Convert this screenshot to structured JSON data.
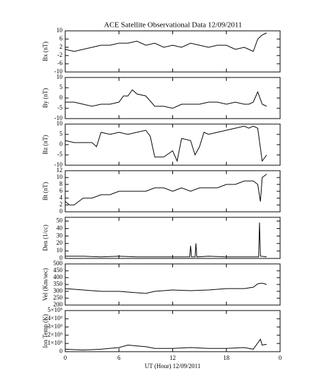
{
  "chart_data": [
    {
      "type": "line",
      "title": "ACE Satellite Observational Data   12/09/2011",
      "ylabel": "Bx (nT)",
      "color": "#000000",
      "xlim": [
        0,
        24
      ],
      "xticks": [
        0,
        6,
        12,
        18,
        {
          "value": 24,
          "label": "0"
        }
      ],
      "ylim": [
        -10,
        10
      ],
      "yticks": [
        -10,
        -6,
        -2,
        2,
        6,
        10
      ],
      "x": [
        0,
        1,
        2,
        3,
        4,
        5,
        6,
        7,
        8,
        9,
        10,
        11,
        12,
        13,
        14,
        15,
        16,
        17,
        18,
        19,
        20,
        20.5,
        21,
        21.5,
        22,
        22.5
      ],
      "values": [
        1,
        0,
        1,
        2,
        3,
        3,
        4,
        4,
        5,
        3,
        4,
        2,
        3,
        2,
        4,
        3,
        2,
        3,
        3,
        1,
        2,
        1,
        0,
        6,
        8,
        9
      ]
    },
    {
      "type": "line",
      "ylabel": "By (nT)",
      "color": "#000000",
      "xlim": [
        0,
        24
      ],
      "xticks": [
        0,
        6,
        12,
        18,
        {
          "value": 24,
          "label": "0"
        }
      ],
      "ylim": [
        -10,
        10
      ],
      "yticks": [
        -10,
        -5,
        0,
        5,
        10
      ],
      "x": [
        0,
        1,
        2,
        3,
        4,
        5,
        6,
        6.5,
        7,
        7.5,
        8,
        9,
        10,
        11,
        12,
        13,
        14,
        15,
        16,
        17,
        18,
        19,
        20,
        20.5,
        21,
        21.5,
        22,
        22.5
      ],
      "values": [
        -2,
        -2,
        -3,
        -4,
        -3,
        -3,
        -2,
        1,
        1,
        4,
        2,
        1,
        -4,
        -4,
        -5,
        -3,
        -3,
        -3,
        -2,
        -2,
        -3,
        -2,
        -3,
        -3,
        -2,
        3,
        -3,
        -4
      ]
    },
    {
      "type": "line",
      "ylabel": "Bz (nT)",
      "color": "#000000",
      "xlim": [
        0,
        24
      ],
      "xticks": [
        0,
        6,
        12,
        18,
        {
          "value": 24,
          "label": "0"
        }
      ],
      "ylim": [
        -10,
        10
      ],
      "yticks": [
        -10,
        -5,
        0,
        5,
        10
      ],
      "x": [
        0,
        1,
        2,
        3,
        3.5,
        4,
        5,
        6,
        7,
        8,
        9,
        9.5,
        10,
        11,
        12,
        12.5,
        13,
        14,
        14.5,
        15,
        15.5,
        16,
        17,
        18,
        19,
        20,
        20.5,
        21,
        21.5,
        22,
        22.5
      ],
      "values": [
        2,
        1,
        1,
        1,
        -1,
        6,
        5,
        6,
        5,
        6,
        7,
        4,
        -6,
        -6,
        -3,
        -8,
        3,
        2,
        -5,
        -1,
        6,
        5,
        6,
        7,
        8,
        9,
        8,
        9,
        8,
        -8,
        -5
      ]
    },
    {
      "type": "line",
      "ylabel": "Bt (nT)",
      "color": "#000000",
      "xlim": [
        0,
        24
      ],
      "xticks": [
        0,
        6,
        12,
        18,
        {
          "value": 24,
          "label": "0"
        }
      ],
      "ylim": [
        0,
        12
      ],
      "yticks": [
        0,
        2,
        4,
        6,
        8,
        10,
        12
      ],
      "x": [
        0,
        0.5,
        1,
        2,
        3,
        4,
        5,
        6,
        7,
        8,
        9,
        10,
        11,
        12,
        13,
        14,
        15,
        16,
        17,
        18,
        19,
        20,
        21,
        21.5,
        21.8,
        22,
        22.5
      ],
      "values": [
        3,
        2,
        2,
        4,
        4,
        5,
        5,
        6,
        6,
        6,
        6,
        7,
        7,
        6,
        7,
        6,
        7,
        7,
        7,
        8,
        8,
        9,
        9,
        8,
        3,
        10,
        11
      ]
    },
    {
      "type": "line",
      "ylabel": "Den (1/cc)",
      "color": "#000000",
      "xlim": [
        0,
        24
      ],
      "xticks": [
        0,
        6,
        12,
        18,
        {
          "value": 24,
          "label": "0"
        }
      ],
      "ylim": [
        0,
        55
      ],
      "yticks": [
        0,
        10,
        20,
        30,
        40,
        50
      ],
      "x": [
        0,
        2,
        4,
        6,
        8,
        10,
        12,
        13.9,
        14,
        14.1,
        14.5,
        14.6,
        14.7,
        16,
        18,
        20,
        21.6,
        21.7,
        21.8,
        22.5
      ],
      "values": [
        3,
        3,
        2,
        3,
        2,
        2,
        2,
        2,
        17,
        2,
        2,
        20,
        2,
        3,
        2,
        2,
        2,
        48,
        3,
        2
      ]
    },
    {
      "type": "line",
      "ylabel": "Vel (Km/sec)",
      "color": "#000000",
      "xlim": [
        0,
        24
      ],
      "xticks": [
        0,
        6,
        12,
        18,
        {
          "value": 24,
          "label": "0"
        }
      ],
      "ylim": [
        200,
        500
      ],
      "yticks": [
        200,
        250,
        300,
        350,
        400,
        450,
        500
      ],
      "x": [
        0,
        2,
        4,
        6,
        8,
        9,
        10,
        12,
        14,
        16,
        18,
        20,
        21,
        21.5,
        22,
        22.5
      ],
      "values": [
        320,
        310,
        300,
        300,
        290,
        285,
        300,
        310,
        305,
        310,
        320,
        320,
        330,
        355,
        360,
        350
      ]
    },
    {
      "type": "line",
      "ylabel": "Ion Temp (K)",
      "xlabel": "UT (Hour)   12/09/2011",
      "color": "#000000",
      "xlim": [
        0,
        24
      ],
      "xticks": [
        0,
        6,
        12,
        18,
        {
          "value": 24,
          "label": "0"
        }
      ],
      "ylim": [
        0,
        500000
      ],
      "yticks": [
        0,
        {
          "value": 100000,
          "label": "1×10⁵"
        },
        {
          "value": 200000,
          "label": "2×10⁵"
        },
        {
          "value": 300000,
          "label": "3×10⁵"
        },
        {
          "value": 400000,
          "label": "4×10⁵"
        },
        {
          "value": 500000,
          "label": "5×10⁵"
        }
      ],
      "x": [
        0,
        2,
        4,
        6,
        7,
        8,
        9,
        10,
        12,
        14,
        16,
        18,
        20,
        21,
        21.8,
        22,
        22.5
      ],
      "values": [
        30000,
        20000,
        30000,
        50000,
        80000,
        70000,
        60000,
        40000,
        40000,
        50000,
        40000,
        40000,
        50000,
        30000,
        150000,
        80000,
        90000
      ]
    }
  ]
}
